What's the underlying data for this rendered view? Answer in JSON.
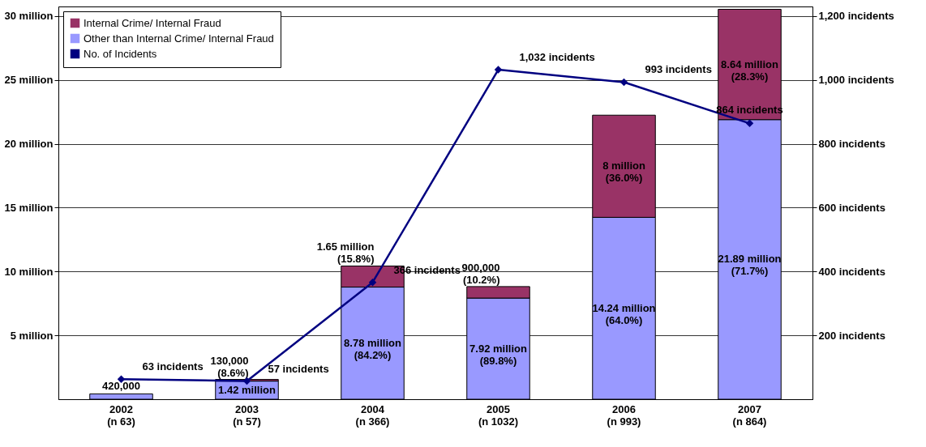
{
  "chart_data": {
    "type": "bar",
    "stacked": true,
    "categories": [
      "2002\n(n 63)",
      "2003\n(n 57)",
      "2004\n(n 366)",
      "2005\n(n 1032)",
      "2006\n(n 993)",
      "2007\n(n 864)"
    ],
    "series": [
      {
        "name": "Other than Internal Crime/ Internal Fraud",
        "color": "#9999ff",
        "values": [
          420000,
          1420000,
          8780000,
          7920000,
          14240000,
          21890000
        ],
        "value_labels": [
          "420,000",
          "1.42 million",
          "8.78 million\n(84.2%)",
          "7.92 million\n(89.8%)",
          "14.24 million\n(64.0%)",
          "21.89 million\n(71.7%)"
        ]
      },
      {
        "name": "Internal Crime/ Internal Fraud",
        "color": "#993366",
        "values": [
          null,
          130000,
          1650000,
          900000,
          8000000,
          8640000
        ],
        "value_labels": [
          null,
          "130,000\n(8.6%)",
          "1.65 million\n(15.8%)",
          "900,000\n(10.2%)",
          "8 million\n(36.0%)",
          "8.64 million\n(28.3%)"
        ]
      },
      {
        "name": "No. of Incidents",
        "type": "line",
        "axis": "y2",
        "color": "#000080",
        "values": [
          63,
          57,
          366,
          1032,
          993,
          864
        ],
        "value_labels": [
          "63 incidents",
          "57 incidents",
          "366 incidents",
          "1,032 incidents",
          "993 incidents",
          "864 incidents"
        ]
      }
    ],
    "ylim": [
      0,
      30750000
    ],
    "yticks": [
      {
        "value": 5000000,
        "label": "5 million"
      },
      {
        "value": 10000000,
        "label": "10 million"
      },
      {
        "value": 15000000,
        "label": "15 million"
      },
      {
        "value": 20000000,
        "label": "20 million"
      },
      {
        "value": 25000000,
        "label": "25 million"
      },
      {
        "value": 30000000,
        "label": "30 million"
      }
    ],
    "y2lim": [
      0,
      1230
    ],
    "y2ticks": [
      {
        "value": 200,
        "label": "200 incidents"
      },
      {
        "value": 400,
        "label": "400 incidents"
      },
      {
        "value": 600,
        "label": "600 incidents"
      },
      {
        "value": 800,
        "label": "800 incidents"
      },
      {
        "value": 1000,
        "label": "1,000 incidents"
      },
      {
        "value": 1200,
        "label": "1,200 incidents"
      }
    ],
    "grid": "y",
    "legend": "top left",
    "marker": "diamond",
    "line_style": "solid"
  }
}
